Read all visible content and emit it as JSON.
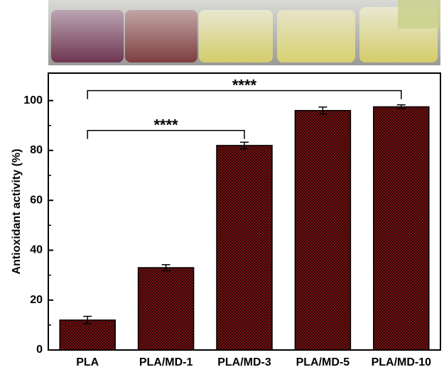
{
  "chart_data": {
    "type": "bar",
    "y_label": "Antioxidant activity (%)",
    "categories": [
      "PLA",
      "PLA/MD-1",
      "PLA/MD-3",
      "PLA/MD-5",
      "PLA/MD-10"
    ],
    "values": [
      12,
      33,
      82,
      96,
      97.5
    ],
    "errors": [
      1.5,
      1.2,
      1.3,
      1.4,
      0.8
    ],
    "color": "#7a1212",
    "ylim": [
      0,
      111
    ],
    "yticks": [
      0,
      20,
      40,
      60,
      80,
      100
    ],
    "minor_yticks": [
      10,
      30,
      50,
      70,
      90
    ],
    "annotations": [
      {
        "text": "****",
        "from": "PLA",
        "to": "PLA/MD-3",
        "y": 88
      },
      {
        "text": "****",
        "from": "PLA",
        "to": "PLA/MD-10",
        "y": 104
      }
    ]
  }
}
